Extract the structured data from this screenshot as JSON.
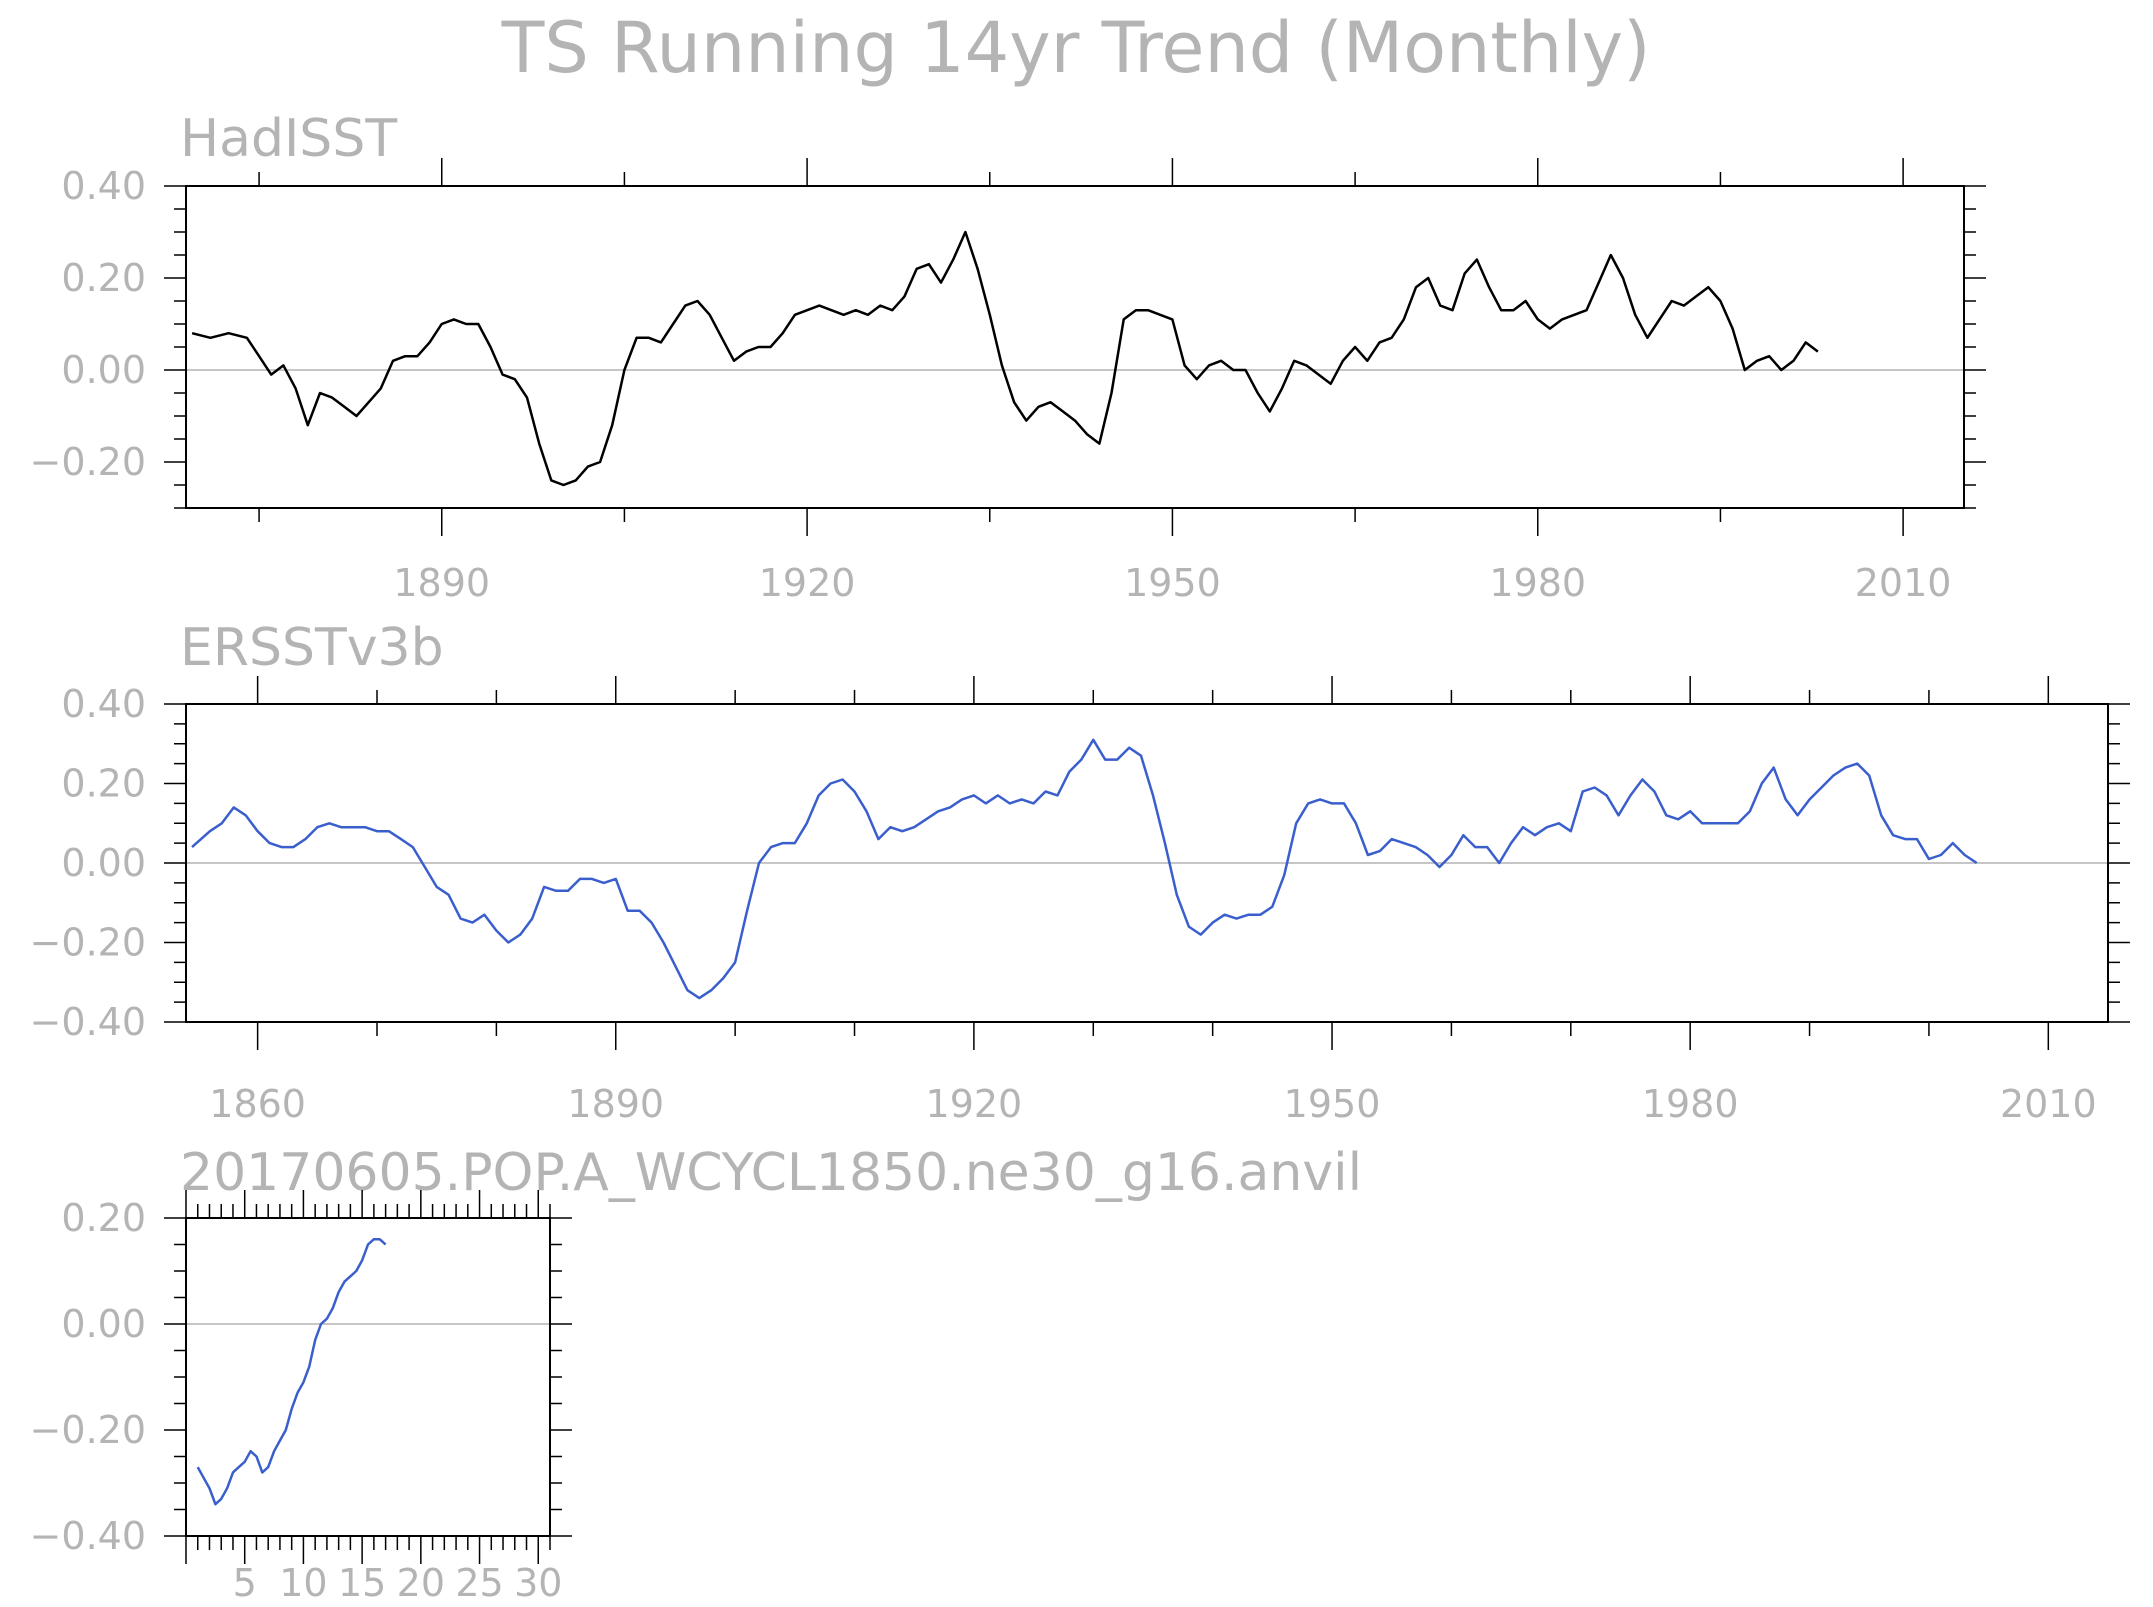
{
  "title": "TS Running 14yr Trend (Monthly)",
  "colors": {
    "frame": "#000000",
    "text": "#b4b4b4",
    "zero_line": "#b4b4b4",
    "series_1": "#000000",
    "series_2": "#3a5fcd",
    "series_3": "#3a5fcd"
  },
  "chart_data": [
    {
      "type": "line",
      "title": "HadISST",
      "xlim": [
        1869,
        2015
      ],
      "ylim": [
        -0.3,
        0.4
      ],
      "xticks": [
        "1890",
        "1920",
        "1950",
        "1980",
        "2010"
      ],
      "yticks": [
        "0.40",
        "0.20",
        "0.00",
        "-0.20"
      ],
      "zero_line": true,
      "series": [
        {
          "color": "#000000",
          "x": [
            1869.5,
            1871,
            1872.5,
            1874,
            1875,
            1876,
            1877,
            1878,
            1879,
            1880,
            1881,
            1882,
            1883,
            1884,
            1885,
            1886,
            1887,
            1888,
            1889,
            1890,
            1891,
            1892,
            1893,
            1894,
            1895,
            1896,
            1897,
            1898,
            1899,
            1900,
            1901,
            1902,
            1903,
            1904,
            1905,
            1906,
            1907,
            1908,
            1909,
            1910,
            1911,
            1912,
            1913,
            1914,
            1915,
            1916,
            1917,
            1918,
            1919,
            1920,
            1921,
            1922,
            1923,
            1924,
            1925,
            1926,
            1927,
            1928,
            1929,
            1930,
            1931,
            1932,
            1933,
            1934,
            1935,
            1936,
            1937,
            1938,
            1939,
            1940,
            1941,
            1942,
            1943,
            1944,
            1945,
            1946,
            1947,
            1948,
            1949,
            1950,
            1951,
            1952,
            1953,
            1954,
            1955,
            1956,
            1957,
            1958,
            1959,
            1960,
            1961,
            1962,
            1963,
            1964,
            1965,
            1966,
            1967,
            1968,
            1969,
            1970,
            1971,
            1972,
            1973,
            1974,
            1975,
            1976,
            1977,
            1978,
            1979,
            1980,
            1981,
            1982,
            1983,
            1984,
            1985,
            1986,
            1987,
            1988,
            1989,
            1990,
            1991,
            1992,
            1993,
            1994,
            1995,
            1996,
            1997,
            1998,
            1999,
            2000,
            2001,
            2002,
            2003
          ],
          "y": [
            0.08,
            0.07,
            0.08,
            0.07,
            0.03,
            -0.01,
            0.01,
            -0.04,
            -0.12,
            -0.05,
            -0.06,
            -0.08,
            -0.1,
            -0.07,
            -0.04,
            0.02,
            0.03,
            0.03,
            0.06,
            0.1,
            0.11,
            0.1,
            0.1,
            0.05,
            -0.01,
            -0.02,
            -0.06,
            -0.16,
            -0.24,
            -0.25,
            -0.24,
            -0.21,
            -0.2,
            -0.12,
            0.0,
            0.07,
            0.07,
            0.06,
            0.1,
            0.14,
            0.15,
            0.12,
            0.07,
            0.02,
            0.04,
            0.05,
            0.05,
            0.08,
            0.12,
            0.13,
            0.14,
            0.13,
            0.12,
            0.13,
            0.12,
            0.14,
            0.13,
            0.16,
            0.22,
            0.23,
            0.19,
            0.24,
            0.3,
            0.22,
            0.12,
            0.01,
            -0.07,
            -0.11,
            -0.08,
            -0.07,
            -0.09,
            -0.11,
            -0.14,
            -0.16,
            -0.05,
            0.11,
            0.13,
            0.13,
            0.12,
            0.11,
            0.01,
            -0.02,
            0.01,
            0.02,
            0.0,
            0.0,
            -0.05,
            -0.09,
            -0.04,
            0.02,
            0.01,
            -0.01,
            -0.03,
            0.02,
            0.05,
            0.02,
            0.06,
            0.07,
            0.11,
            0.18,
            0.2,
            0.14,
            0.13,
            0.21,
            0.24,
            0.18,
            0.13,
            0.13,
            0.15,
            0.11,
            0.09,
            0.11,
            0.12,
            0.13,
            0.19,
            0.25,
            0.2,
            0.12,
            0.07,
            0.11,
            0.15,
            0.14,
            0.16,
            0.18,
            0.15,
            0.09,
            0.0,
            0.02,
            0.03,
            0.0,
            0.02,
            0.06,
            0.04
          ]
        }
      ]
    },
    {
      "type": "line",
      "title": "ERSSTv3b",
      "xlim": [
        1854,
        2015
      ],
      "ylim": [
        -0.4,
        0.4
      ],
      "xticks": [
        "1860",
        "1890",
        "1920",
        "1950",
        "1980",
        "2010"
      ],
      "yticks": [
        "0.40",
        "0.20",
        "0.00",
        "-0.20",
        "-0.40"
      ],
      "zero_line": true,
      "series": [
        {
          "color": "#3a5fcd",
          "x": [
            1854.5,
            1856,
            1857,
            1858,
            1859,
            1860,
            1861,
            1862,
            1863,
            1864,
            1865,
            1866,
            1867,
            1868,
            1869,
            1870,
            1871,
            1872,
            1873,
            1874,
            1875,
            1876,
            1877,
            1878,
            1879,
            1880,
            1881,
            1882,
            1883,
            1884,
            1885,
            1886,
            1887,
            1888,
            1889,
            1890,
            1891,
            1892,
            1893,
            1894,
            1895,
            1896,
            1897,
            1898,
            1899,
            1900,
            1901,
            1902,
            1903,
            1904,
            1905,
            1906,
            1907,
            1908,
            1909,
            1910,
            1911,
            1912,
            1913,
            1914,
            1915,
            1916,
            1917,
            1918,
            1919,
            1920,
            1921,
            1922,
            1923,
            1924,
            1925,
            1926,
            1927,
            1928,
            1929,
            1930,
            1931,
            1932,
            1933,
            1934,
            1935,
            1936,
            1937,
            1938,
            1939,
            1940,
            1941,
            1942,
            1943,
            1944,
            1945,
            1946,
            1947,
            1948,
            1949,
            1950,
            1951,
            1952,
            1953,
            1954,
            1955,
            1956,
            1957,
            1958,
            1959,
            1960,
            1961,
            1962,
            1963,
            1964,
            1965,
            1966,
            1967,
            1968,
            1969,
            1970,
            1971,
            1972,
            1973,
            1974,
            1975,
            1976,
            1977,
            1978,
            1979,
            1980,
            1981,
            1982,
            1983,
            1984,
            1985,
            1986,
            1987,
            1988,
            1989,
            1990,
            1991,
            1992,
            1993,
            1994,
            1995,
            1996,
            1997,
            1998,
            1999,
            2000,
            2001,
            2002,
            2003,
            2004
          ],
          "y": [
            0.04,
            0.08,
            0.1,
            0.14,
            0.12,
            0.08,
            0.05,
            0.04,
            0.04,
            0.06,
            0.09,
            0.1,
            0.09,
            0.09,
            0.09,
            0.08,
            0.08,
            0.06,
            0.04,
            -0.01,
            -0.06,
            -0.08,
            -0.14,
            -0.15,
            -0.13,
            -0.17,
            -0.2,
            -0.18,
            -0.14,
            -0.06,
            -0.07,
            -0.07,
            -0.04,
            -0.04,
            -0.05,
            -0.04,
            -0.12,
            -0.12,
            -0.15,
            -0.2,
            -0.26,
            -0.32,
            -0.34,
            -0.32,
            -0.29,
            -0.25,
            -0.12,
            0.0,
            0.04,
            0.05,
            0.05,
            0.1,
            0.17,
            0.2,
            0.21,
            0.18,
            0.13,
            0.06,
            0.09,
            0.08,
            0.09,
            0.11,
            0.13,
            0.14,
            0.16,
            0.17,
            0.15,
            0.17,
            0.15,
            0.16,
            0.15,
            0.18,
            0.17,
            0.23,
            0.26,
            0.31,
            0.26,
            0.26,
            0.29,
            0.27,
            0.17,
            0.05,
            -0.08,
            -0.16,
            -0.18,
            -0.15,
            -0.13,
            -0.14,
            -0.13,
            -0.13,
            -0.11,
            -0.03,
            0.1,
            0.15,
            0.16,
            0.15,
            0.15,
            0.1,
            0.02,
            0.03,
            0.06,
            0.05,
            0.04,
            0.02,
            -0.01,
            0.02,
            0.07,
            0.04,
            0.04,
            0.0,
            0.05,
            0.09,
            0.07,
            0.09,
            0.1,
            0.08,
            0.18,
            0.19,
            0.17,
            0.12,
            0.17,
            0.21,
            0.18,
            0.12,
            0.11,
            0.13,
            0.1,
            0.1,
            0.1,
            0.1,
            0.13,
            0.2,
            0.24,
            0.16,
            0.12,
            0.16,
            0.19,
            0.22,
            0.24,
            0.25,
            0.22,
            0.12,
            0.07,
            0.06,
            0.06,
            0.01,
            0.02,
            0.05,
            0.02,
            0.0
          ]
        }
      ]
    },
    {
      "type": "line",
      "title": "20170605.POP.A_WCYCL1850.ne30_g16.anvil",
      "xlim": [
        0,
        31
      ],
      "ylim": [
        -0.4,
        0.2
      ],
      "xticks": [
        "5",
        "10",
        "15",
        "20",
        "25",
        "30"
      ],
      "yticks": [
        "0.20",
        "0.00",
        "-0.20",
        "-0.40"
      ],
      "zero_line": true,
      "series": [
        {
          "color": "#3a5fcd",
          "x": [
            1,
            1.5,
            2,
            2.5,
            3,
            3.5,
            4,
            4.5,
            5,
            5.5,
            6,
            6.5,
            7,
            7.5,
            8,
            8.5,
            9,
            9.5,
            10,
            10.5,
            11,
            11.5,
            12,
            12.5,
            13,
            13.5,
            14,
            14.5,
            15,
            15.5,
            16,
            16.5,
            17
          ],
          "y": [
            -0.27,
            -0.29,
            -0.31,
            -0.34,
            -0.33,
            -0.31,
            -0.28,
            -0.27,
            -0.26,
            -0.24,
            -0.25,
            -0.28,
            -0.27,
            -0.24,
            -0.22,
            -0.2,
            -0.16,
            -0.13,
            -0.11,
            -0.08,
            -0.03,
            0.0,
            0.01,
            0.03,
            0.06,
            0.08,
            0.09,
            0.1,
            0.12,
            0.15,
            0.16,
            0.16,
            0.15
          ]
        }
      ]
    }
  ]
}
